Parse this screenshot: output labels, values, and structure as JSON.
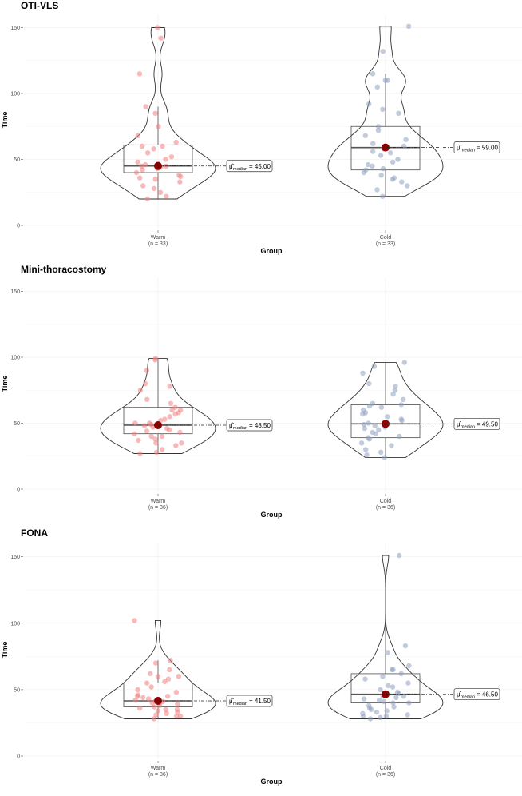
{
  "chart_data": [
    {
      "type": "violin",
      "title": "OTI-VLS",
      "xlabel": "Group",
      "ylabel": "Time",
      "ylim": [
        0,
        160
      ],
      "yticks": [
        0,
        50,
        100,
        150
      ],
      "categories": [
        "Warm",
        "Cold"
      ],
      "n_labels": [
        "(n = 33)",
        "(n = 33)"
      ],
      "groups": [
        {
          "name": "Warm",
          "color": "#f08080",
          "median": 45.0,
          "median_label": "45.00",
          "q1": 40,
          "q3": 61,
          "whisker_low": 20,
          "whisker_high": 90,
          "points": [
            150,
            142,
            115,
            90,
            85,
            75,
            68,
            63,
            60,
            58,
            55,
            52,
            50,
            48,
            47,
            46,
            45,
            45,
            44,
            43,
            42,
            40,
            38,
            37,
            36,
            35,
            33,
            30,
            28,
            25,
            22,
            20,
            60
          ]
        },
        {
          "name": "Cold",
          "color": "#8fa0c0",
          "median": 59.0,
          "median_label": "59.00",
          "q1": 42,
          "q3": 75,
          "whisker_low": 22,
          "whisker_high": 115,
          "points": [
            151,
            132,
            115,
            110,
            105,
            92,
            85,
            75,
            72,
            68,
            65,
            62,
            60,
            58,
            56,
            55,
            53,
            50,
            48,
            46,
            45,
            43,
            42,
            40,
            38,
            36,
            35,
            30,
            27,
            22,
            110,
            88,
            33
          ]
        }
      ]
    },
    {
      "type": "violin",
      "title": "Mini-thoracostomy",
      "xlabel": "Group",
      "ylabel": "Time",
      "ylim": [
        0,
        160
      ],
      "yticks": [
        0,
        50,
        100,
        150
      ],
      "categories": [
        "Warm",
        "Cold"
      ],
      "n_labels": [
        "(n = 36)",
        "(n = 36)"
      ],
      "groups": [
        {
          "name": "Warm",
          "color": "#f08080",
          "median": 48.5,
          "median_label": "48.50",
          "q1": 42,
          "q3": 62,
          "whisker_low": 27,
          "whisker_high": 99,
          "points": [
            99,
            98,
            90,
            80,
            78,
            75,
            68,
            65,
            62,
            60,
            58,
            57,
            55,
            53,
            52,
            50,
            50,
            49,
            48,
            47,
            46,
            45,
            44,
            43,
            42,
            40,
            40,
            38,
            37,
            35,
            35,
            33,
            30,
            28,
            27,
            60
          ]
        },
        {
          "name": "Cold",
          "color": "#8fa0c0",
          "median": 49.5,
          "median_label": "49.50",
          "q1": 39,
          "q3": 64,
          "whisker_low": 24,
          "whisker_high": 96,
          "points": [
            96,
            93,
            88,
            80,
            78,
            75,
            72,
            68,
            65,
            64,
            63,
            60,
            58,
            57,
            55,
            53,
            52,
            50,
            50,
            49,
            48,
            47,
            46,
            45,
            43,
            42,
            40,
            39,
            38,
            35,
            33,
            30,
            28,
            26,
            24,
            62
          ]
        }
      ]
    },
    {
      "type": "violin",
      "title": "FONA",
      "xlabel": "Group",
      "ylabel": "Time",
      "ylim": [
        0,
        160
      ],
      "yticks": [
        0,
        50,
        100,
        150
      ],
      "categories": [
        "Warm",
        "Cold"
      ],
      "n_labels": [
        "(n = 36)",
        "(n = 36)"
      ],
      "groups": [
        {
          "name": "Warm",
          "color": "#f08080",
          "median": 41.5,
          "median_label": "41.50",
          "q1": 37,
          "q3": 55,
          "whisker_low": 28,
          "whisker_high": 72,
          "points": [
            102,
            72,
            70,
            65,
            62,
            60,
            58,
            56,
            55,
            52,
            50,
            48,
            46,
            45,
            44,
            43,
            42,
            41,
            41,
            40,
            40,
            39,
            38,
            37,
            36,
            35,
            35,
            34,
            33,
            32,
            31,
            30,
            30,
            28,
            60,
            45
          ]
        },
        {
          "name": "Cold",
          "color": "#8fa0c0",
          "median": 46.5,
          "median_label": "46.50",
          "q1": 40,
          "q3": 62,
          "whisker_low": 28,
          "whisker_high": 104,
          "points": [
            151,
            83,
            78,
            68,
            65,
            62,
            60,
            58,
            55,
            53,
            52,
            50,
            48,
            47,
            46,
            45,
            45,
            44,
            43,
            42,
            41,
            40,
            40,
            38,
            37,
            36,
            35,
            34,
            33,
            32,
            31,
            30,
            30,
            29,
            28,
            65
          ]
        }
      ]
    }
  ]
}
